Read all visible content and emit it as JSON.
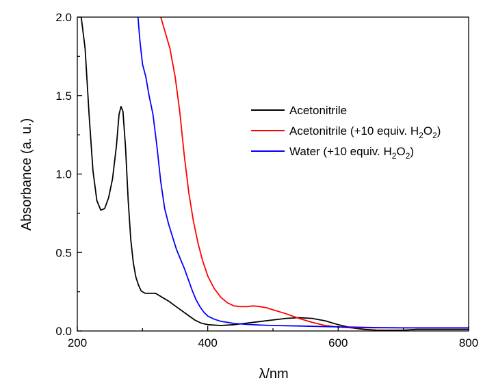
{
  "chart_data": {
    "type": "line",
    "xlabel": "λ/nm",
    "ylabel": "Absorbance (a. u.)",
    "xlim": [
      200,
      800
    ],
    "ylim": [
      0,
      2.0
    ],
    "xticks": [
      200,
      400,
      600,
      800
    ],
    "xtick_labels": [
      "200",
      "400",
      "600",
      "800"
    ],
    "yticks": [
      0,
      0.5,
      1.0,
      1.5,
      2.0
    ],
    "ytick_labels": [
      "0.0",
      "0.5",
      "1.0",
      "1.5",
      "2.0"
    ],
    "grid": false,
    "legend_position": "right",
    "series": [
      {
        "name": "Acetonitrile",
        "legend_label": {
          "base": "Acetonitrile",
          "sub1": "",
          "mid": "",
          "sub2": "",
          "end": ""
        },
        "color": "#000000",
        "x": [
          206,
          212,
          218,
          224,
          230,
          236,
          242,
          248,
          254,
          260,
          264,
          267,
          270,
          274,
          278,
          282,
          286,
          290,
          294,
          298,
          304,
          312,
          320,
          330,
          340,
          350,
          360,
          370,
          380,
          390,
          400,
          420,
          440,
          460,
          480,
          500,
          520,
          540,
          560,
          580,
          600,
          620,
          640,
          660,
          680,
          700,
          720,
          740,
          760,
          780,
          800
        ],
        "y": [
          2.0,
          1.8,
          1.38,
          1.02,
          0.83,
          0.77,
          0.78,
          0.85,
          0.97,
          1.18,
          1.38,
          1.43,
          1.4,
          1.17,
          0.83,
          0.58,
          0.43,
          0.34,
          0.29,
          0.255,
          0.24,
          0.24,
          0.24,
          0.215,
          0.19,
          0.16,
          0.13,
          0.1,
          0.07,
          0.05,
          0.04,
          0.035,
          0.04,
          0.05,
          0.06,
          0.07,
          0.08,
          0.085,
          0.08,
          0.065,
          0.04,
          0.02,
          0.01,
          0.005,
          0.005,
          0.005,
          0.01,
          0.01,
          0.01,
          0.01,
          0.01
        ]
      },
      {
        "name": "Acetonitrile (+10 equiv. H2O2)",
        "legend_label": {
          "base": "Acetonitrile (+10 equiv. H",
          "sub1": "2",
          "mid": "O",
          "sub2": "2",
          "end": ")"
        },
        "color": "#ff0000",
        "x": [
          328,
          335,
          342,
          350,
          357,
          364,
          371,
          378,
          385,
          392,
          400,
          410,
          420,
          430,
          440,
          450,
          460,
          470,
          480,
          490,
          500,
          520,
          540,
          560,
          580,
          600,
          620,
          640,
          660,
          700,
          740,
          780,
          800
        ],
        "y": [
          2.0,
          1.9,
          1.8,
          1.62,
          1.4,
          1.12,
          0.88,
          0.7,
          0.56,
          0.45,
          0.35,
          0.27,
          0.215,
          0.18,
          0.16,
          0.155,
          0.155,
          0.16,
          0.155,
          0.148,
          0.135,
          0.11,
          0.08,
          0.055,
          0.035,
          0.025,
          0.02,
          0.02,
          0.02,
          0.02,
          0.02,
          0.02,
          0.02
        ]
      },
      {
        "name": "Water (+10 equiv. H2O2)",
        "legend_label": {
          "base": "Water (+10 equiv. H",
          "sub1": "2",
          "mid": "O",
          "sub2": "2",
          "end": ")"
        },
        "color": "#0000ff",
        "x": [
          293,
          296,
          300,
          305,
          310,
          316,
          322,
          328,
          334,
          340,
          346,
          352,
          358,
          364,
          370,
          376,
          382,
          388,
          394,
          400,
          410,
          420,
          430,
          440,
          460,
          480,
          500,
          540,
          580,
          620,
          660,
          700,
          740,
          780,
          800
        ],
        "y": [
          2.0,
          1.85,
          1.7,
          1.62,
          1.5,
          1.38,
          1.18,
          0.95,
          0.78,
          0.68,
          0.6,
          0.52,
          0.46,
          0.4,
          0.33,
          0.26,
          0.2,
          0.155,
          0.12,
          0.095,
          0.075,
          0.062,
          0.055,
          0.048,
          0.042,
          0.038,
          0.035,
          0.032,
          0.028,
          0.025,
          0.022,
          0.02,
          0.02,
          0.02,
          0.02
        ]
      }
    ]
  }
}
